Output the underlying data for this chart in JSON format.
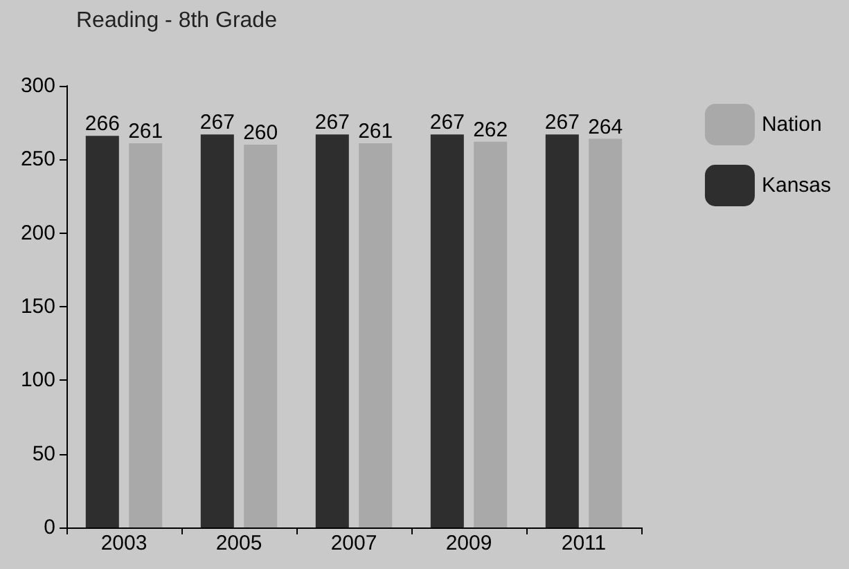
{
  "chart_data": {
    "type": "bar",
    "title": "Reading - 8th Grade",
    "categories": [
      "2003",
      "2005",
      "2007",
      "2009",
      "2011"
    ],
    "series": [
      {
        "name": "Kansas",
        "color": "#2e2e2e",
        "values": [
          266,
          267,
          267,
          267,
          267
        ]
      },
      {
        "name": "Nation",
        "color": "#a9a9a9",
        "values": [
          261,
          260,
          261,
          262,
          264
        ]
      }
    ],
    "ylim": [
      0,
      300
    ],
    "yticks": [
      0,
      50,
      100,
      150,
      200,
      250,
      300
    ],
    "grid": false,
    "legend": "right",
    "data_labels": true
  }
}
